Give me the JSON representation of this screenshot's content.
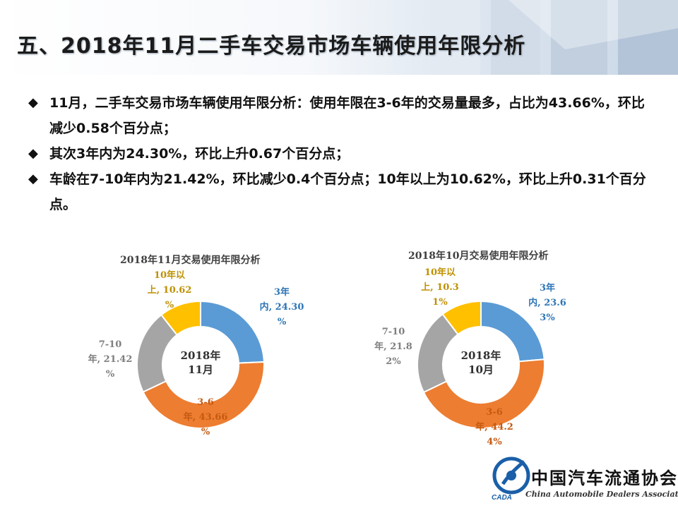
{
  "header": {
    "title": "五、2018年11月二手车交易市场车辆使用年限分析"
  },
  "bullets": [
    "11月，二手车交易市场车辆使用年限分析：使用年限在3-6年的交易量最多，占比为43.66%，环比减少0.58个百分点；",
    "其次3年内为24.30%，环比上升0.67个百分点；",
    "车龄在7-10年内为21.42%，环比减少0.4个百分点；10年以上为10.62%，环比上升0.31个百分点。"
  ],
  "chart_data": [
    {
      "type": "pie",
      "donut": true,
      "title": "2018年11月交易使用年限分析",
      "center_label": [
        "2018年",
        "11月"
      ],
      "colors": [
        "#5b9bd5",
        "#ed7d31",
        "#a5a5a5",
        "#ffc000"
      ],
      "categories": [
        "3年内",
        "3-6年",
        "7-10年",
        "10年以上"
      ],
      "values": [
        24.3,
        43.66,
        21.42,
        10.62
      ],
      "data_labels": [
        [
          "3年",
          "内, 24.30",
          "%"
        ],
        [
          "3-6",
          "年, 43.66",
          "%"
        ],
        [
          "7-10",
          "年, 21.42",
          "%"
        ],
        [
          "10年以",
          "上, 10.62",
          "%"
        ]
      ]
    },
    {
      "type": "pie",
      "donut": true,
      "title": "2018年10月交易使用年限分析",
      "center_label": [
        "2018年",
        "10月"
      ],
      "colors": [
        "#5b9bd5",
        "#ed7d31",
        "#a5a5a5",
        "#ffc000"
      ],
      "categories": [
        "3年内",
        "3-6年",
        "7-10年",
        "10年以上"
      ],
      "values": [
        23.63,
        44.24,
        21.82,
        10.31
      ],
      "data_labels": [
        [
          "3年",
          "内, 23.6",
          "3%"
        ],
        [
          "3-6",
          "年, 44.2",
          "4%"
        ],
        [
          "7-10",
          "年, 21.8",
          "2%"
        ],
        [
          "10年以",
          "上, 10.3",
          "1%"
        ]
      ]
    }
  ],
  "logo": {
    "name_cn": "中国汽车流通协会",
    "name_en": "China Automobile Dealers Association",
    "abbr": "CADA"
  }
}
